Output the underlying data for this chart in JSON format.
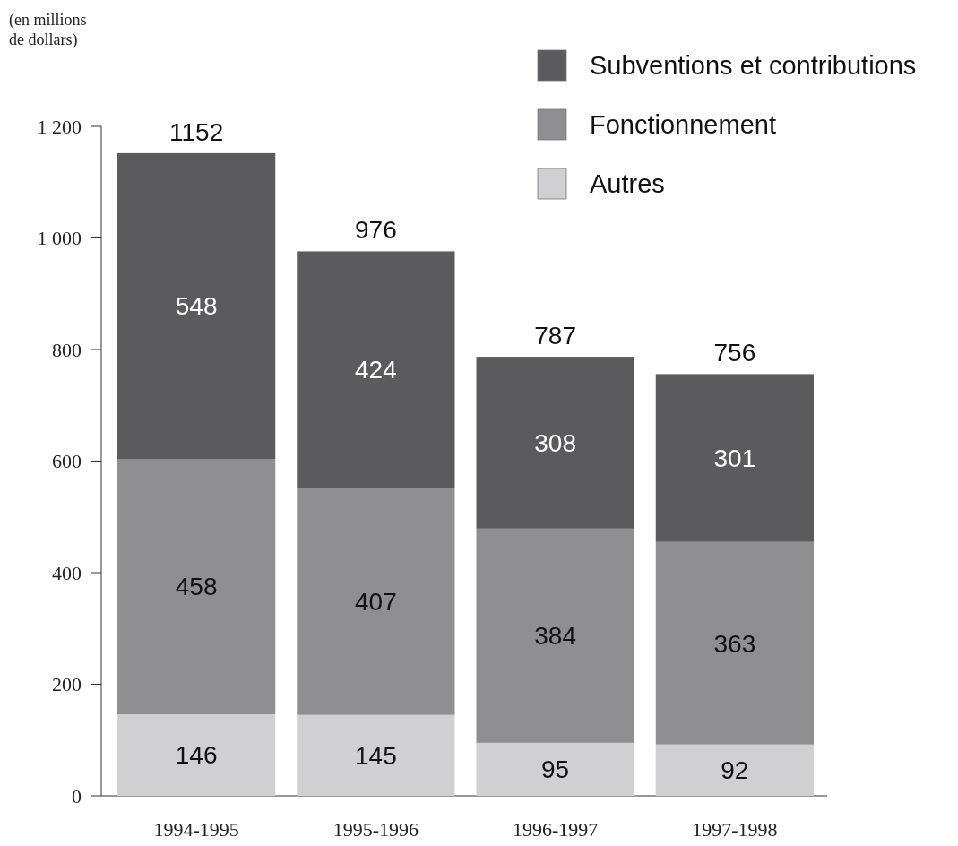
{
  "chart_data": {
    "type": "bar",
    "stacked": true,
    "ylabel": "(en millions de dollars)",
    "categories": [
      "1994-1995",
      "1995-1996",
      "1996-1997",
      "1997-1998"
    ],
    "series": [
      {
        "name": "Autres",
        "color": "#d0d0d2",
        "values": [
          146,
          145,
          95,
          92
        ]
      },
      {
        "name": "Fonctionnement",
        "color": "#8f8f91",
        "values": [
          458,
          407,
          384,
          363
        ]
      },
      {
        "name": "Subventions et contributions",
        "color": "#5b5b5d",
        "values": [
          548,
          424,
          308,
          301
        ]
      }
    ],
    "ylim": [
      0,
      1200
    ],
    "yticks": [
      0,
      200,
      400,
      600,
      800,
      {
        "value": 1000,
        "label": "1 000"
      },
      {
        "value": 1200,
        "label": "1 200"
      }
    ],
    "data_labels": true,
    "totals": [
      "1152",
      "976",
      "787",
      "756"
    ],
    "legend": "top right"
  }
}
